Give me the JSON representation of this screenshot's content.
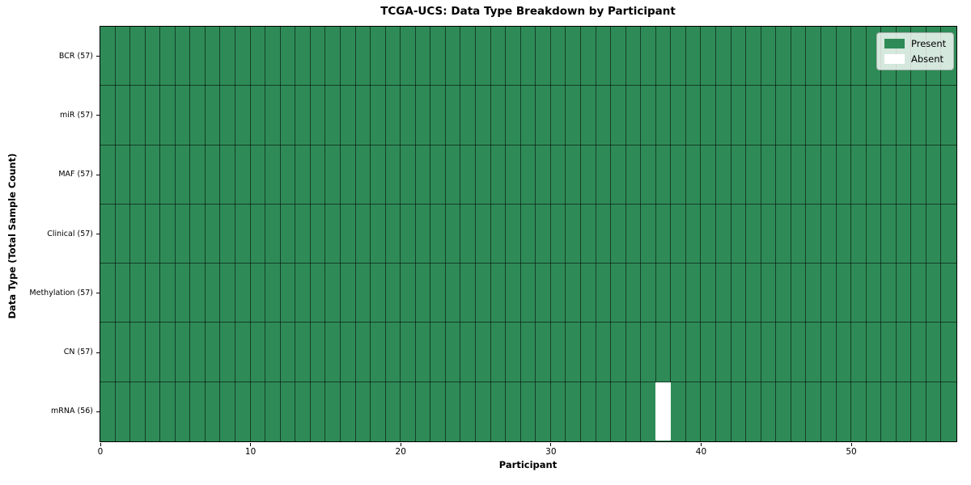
{
  "chart_data": {
    "type": "heatmap",
    "title": "TCGA-UCS: Data Type Breakdown by Participant",
    "xlabel": "Participant",
    "ylabel": "Data Type (Total Sample Count)",
    "x_ticks": [
      0,
      10,
      20,
      30,
      40,
      50
    ],
    "xlim": [
      0,
      57
    ],
    "n_participants": 57,
    "grid": true,
    "rows": [
      {
        "label": "BCR (57)",
        "data_type": "BCR",
        "total_sample_count": 57,
        "present_count": 57,
        "absent_participants": []
      },
      {
        "label": "miR (57)",
        "data_type": "miR",
        "total_sample_count": 57,
        "present_count": 57,
        "absent_participants": []
      },
      {
        "label": "MAF (57)",
        "data_type": "MAF",
        "total_sample_count": 57,
        "present_count": 57,
        "absent_participants": []
      },
      {
        "label": "Clinical (57)",
        "data_type": "Clinical",
        "total_sample_count": 57,
        "present_count": 57,
        "absent_participants": []
      },
      {
        "label": "Methylation (57)",
        "data_type": "Methylation",
        "total_sample_count": 57,
        "present_count": 57,
        "absent_participants": []
      },
      {
        "label": "CN (57)",
        "data_type": "CN",
        "total_sample_count": 57,
        "present_count": 57,
        "absent_participants": []
      },
      {
        "label": "mRNA (56)",
        "data_type": "mRNA",
        "total_sample_count": 56,
        "present_count": 56,
        "absent_participants": [
          37
        ]
      }
    ],
    "legend": {
      "position": "upper-right",
      "entries": [
        {
          "label": "Present",
          "color": "#2e8b57"
        },
        {
          "label": "Absent",
          "color": "#ffffff"
        }
      ]
    },
    "colors": {
      "present": "#2e8b57",
      "absent": "#ffffff",
      "grid_line": "rgba(0,0,0,0.55)",
      "axis_border": "#000000"
    }
  }
}
